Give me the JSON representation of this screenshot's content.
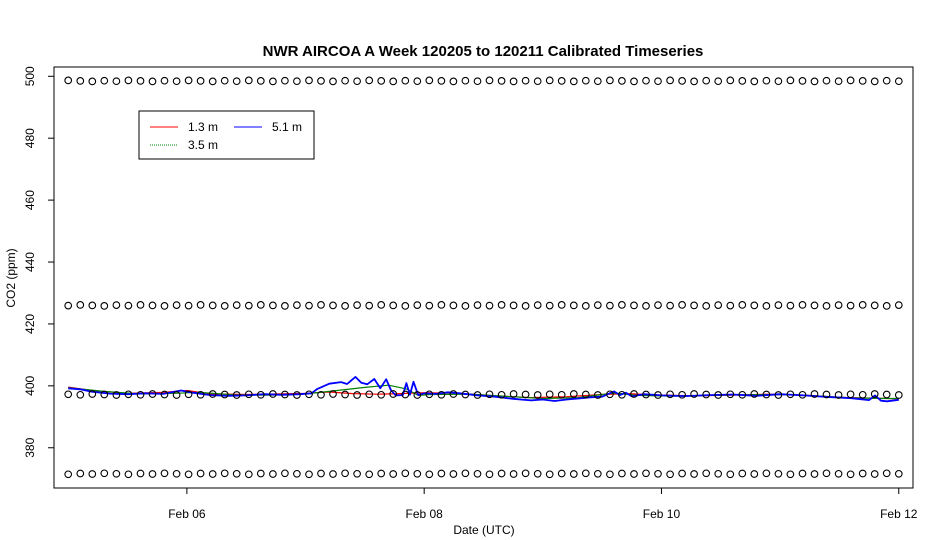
{
  "chart_data": {
    "type": "line",
    "title": "NWR AIRCOA A  Week 120205 to 120211  Calibrated Timeseries",
    "xlabel": "Date (UTC)",
    "ylabel": "CO2 (ppm)",
    "x_ticks": [
      {
        "x": 1,
        "label": "Feb 06"
      },
      {
        "x": 3,
        "label": "Feb 08"
      },
      {
        "x": 5,
        "label": "Feb 10"
      },
      {
        "x": 7,
        "label": "Feb 12"
      }
    ],
    "y_ticks": [
      380,
      400,
      420,
      440,
      460,
      480,
      500
    ],
    "xlim": [
      -0.12,
      7.12
    ],
    "ylim": [
      367,
      503
    ],
    "legend": {
      "position": "top-left",
      "entries": [
        {
          "label": "1.3 m",
          "color": "#ff0000"
        },
        {
          "label": "5.1 m",
          "color": "#0000ff"
        },
        {
          "label": "3.5 m",
          "color": "#008000"
        }
      ]
    },
    "series": [
      {
        "name": "1.3 m",
        "color": "#ff0000",
        "points": [
          [
            0,
            399.6
          ],
          [
            0.2,
            398.5
          ],
          [
            0.5,
            397.6
          ],
          [
            0.8,
            397.9
          ],
          [
            1.0,
            398.5
          ],
          [
            1.2,
            397.4
          ],
          [
            1.5,
            397.2
          ],
          [
            1.8,
            397.4
          ],
          [
            2.0,
            397.6
          ],
          [
            2.2,
            398.0
          ],
          [
            2.4,
            397.5
          ],
          [
            2.6,
            397.3
          ],
          [
            2.8,
            397.5
          ],
          [
            3.0,
            397.8
          ],
          [
            3.3,
            397.6
          ],
          [
            3.6,
            396.8
          ],
          [
            3.9,
            396.2
          ],
          [
            4.2,
            396.5
          ],
          [
            4.5,
            397.2
          ],
          [
            4.7,
            397.5
          ],
          [
            5.0,
            397.0
          ],
          [
            5.3,
            396.8
          ],
          [
            5.6,
            397.0
          ],
          [
            5.9,
            397.3
          ],
          [
            6.2,
            397.0
          ],
          [
            6.5,
            396.3
          ],
          [
            6.8,
            396.0
          ],
          [
            7.0,
            395.8
          ]
        ]
      },
      {
        "name": "3.5 m",
        "color": "#008000",
        "points": [
          [
            0,
            399.4
          ],
          [
            0.3,
            398.2
          ],
          [
            0.6,
            397.4
          ],
          [
            0.9,
            397.6
          ],
          [
            1.1,
            397.9
          ],
          [
            1.4,
            397.1
          ],
          [
            1.7,
            397.0
          ],
          [
            2.0,
            397.4
          ],
          [
            2.2,
            398.2
          ],
          [
            2.5,
            399.5
          ],
          [
            2.7,
            400.2
          ],
          [
            2.85,
            399.0
          ],
          [
            2.95,
            396.9
          ],
          [
            3.05,
            397.2
          ],
          [
            3.4,
            397.3
          ],
          [
            3.7,
            396.6
          ],
          [
            4.0,
            395.9
          ],
          [
            4.3,
            396.2
          ],
          [
            4.6,
            397.7
          ],
          [
            4.8,
            396.9
          ],
          [
            5.1,
            396.7
          ],
          [
            5.4,
            396.9
          ],
          [
            5.7,
            397.1
          ],
          [
            6.0,
            397.2
          ],
          [
            6.3,
            396.8
          ],
          [
            6.6,
            396.1
          ],
          [
            6.9,
            395.9
          ],
          [
            7.0,
            395.9
          ]
        ]
      },
      {
        "name": "5.1 m",
        "color": "#0000ff",
        "points": [
          [
            0,
            399.2
          ],
          [
            0.1,
            398.9
          ],
          [
            0.2,
            398.1
          ],
          [
            0.35,
            397.5
          ],
          [
            0.5,
            397.3
          ],
          [
            0.65,
            397.6
          ],
          [
            0.8,
            397.4
          ],
          [
            0.95,
            398.5
          ],
          [
            1.05,
            397.8
          ],
          [
            1.2,
            397.0
          ],
          [
            1.35,
            396.8
          ],
          [
            1.5,
            396.9
          ],
          [
            1.65,
            397.3
          ],
          [
            1.8,
            397.1
          ],
          [
            1.95,
            397.3
          ],
          [
            2.05,
            397.6
          ],
          [
            2.1,
            399.0
          ],
          [
            2.2,
            400.7
          ],
          [
            2.3,
            401.2
          ],
          [
            2.35,
            400.6
          ],
          [
            2.42,
            402.9
          ],
          [
            2.47,
            401.0
          ],
          [
            2.52,
            400.5
          ],
          [
            2.58,
            402.2
          ],
          [
            2.63,
            399.2
          ],
          [
            2.68,
            402.1
          ],
          [
            2.72,
            398.6
          ],
          [
            2.76,
            396.9
          ],
          [
            2.82,
            397.0
          ],
          [
            2.85,
            400.9
          ],
          [
            2.88,
            397.1
          ],
          [
            2.91,
            401.3
          ],
          [
            2.95,
            397.0
          ],
          [
            3.0,
            397.6
          ],
          [
            3.1,
            397.4
          ],
          [
            3.2,
            397.9
          ],
          [
            3.3,
            397.6
          ],
          [
            3.45,
            396.9
          ],
          [
            3.6,
            396.5
          ],
          [
            3.75,
            395.8
          ],
          [
            3.9,
            395.3
          ],
          [
            4.0,
            395.6
          ],
          [
            4.1,
            395.1
          ],
          [
            4.2,
            395.6
          ],
          [
            4.3,
            395.9
          ],
          [
            4.4,
            396.3
          ],
          [
            4.5,
            396.5
          ],
          [
            4.6,
            398.2
          ],
          [
            4.65,
            397.0
          ],
          [
            4.7,
            397.8
          ],
          [
            4.75,
            396.6
          ],
          [
            4.85,
            397.3
          ],
          [
            5.0,
            396.9
          ],
          [
            5.2,
            396.7
          ],
          [
            5.4,
            397.0
          ],
          [
            5.6,
            397.2
          ],
          [
            5.8,
            396.8
          ],
          [
            6.0,
            397.3
          ],
          [
            6.2,
            396.9
          ],
          [
            6.4,
            396.4
          ],
          [
            6.6,
            396.0
          ],
          [
            6.75,
            395.4
          ],
          [
            6.8,
            396.9
          ],
          [
            6.85,
            395.2
          ],
          [
            6.9,
            395.0
          ],
          [
            7.0,
            395.5
          ]
        ]
      }
    ],
    "calibration_markers": {
      "symbol": "o",
      "levels": [
        498.5,
        426.0,
        397.2,
        371.6
      ],
      "count_per_level": 70,
      "x_range": [
        0,
        7
      ]
    }
  }
}
